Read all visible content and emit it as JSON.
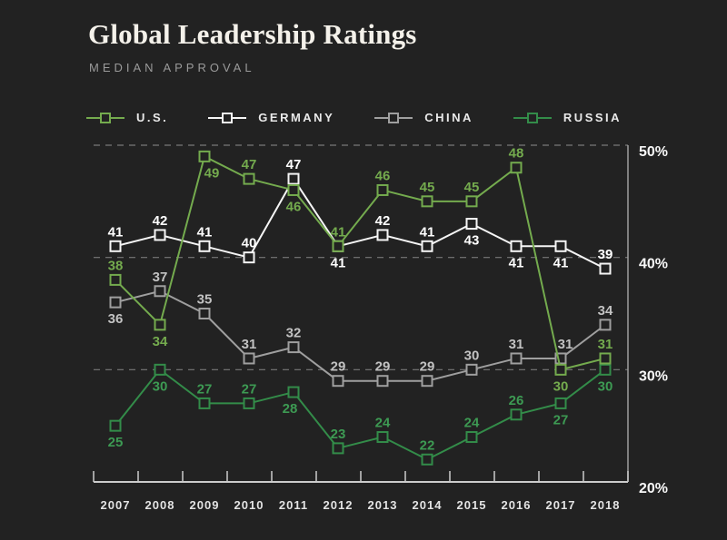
{
  "page": {
    "background": "#222222"
  },
  "header": {
    "title": "Global Leadership Ratings",
    "subtitle": "MEDIAN APPROVAL"
  },
  "legend": [
    {
      "label": "U.S.",
      "color": "#74ab4e"
    },
    {
      "label": "GERMANY",
      "color": "#f5f5f5"
    },
    {
      "label": "CHINA",
      "color": "#9f9f9f"
    },
    {
      "label": "RUSSIA",
      "color": "#338c49"
    }
  ],
  "chart_data": {
    "type": "line",
    "title": "Global Leadership Ratings",
    "subtitle": "MEDIAN APPROVAL",
    "categories": [
      "2007",
      "2008",
      "2009",
      "2010",
      "2011",
      "2012",
      "2013",
      "2014",
      "2015",
      "2016",
      "2017",
      "2018"
    ],
    "series": [
      {
        "name": "U.S.",
        "color": "#74ab4e",
        "label_color": "#74ab4e",
        "values": [
          38,
          34,
          49,
          47,
          46,
          41,
          46,
          45,
          45,
          48,
          30,
          31
        ],
        "label_pos": [
          "a",
          "b",
          "b",
          "a",
          "b",
          "a",
          "a",
          "a",
          "a",
          "a",
          "b",
          "a"
        ],
        "label_dx": [
          0,
          0,
          8,
          0,
          0,
          0,
          0,
          0,
          0,
          0,
          0,
          0
        ]
      },
      {
        "name": "GERMANY",
        "color": "#f5f5f5",
        "label_color": "#ffffff",
        "values": [
          41,
          42,
          41,
          40,
          47,
          41,
          42,
          41,
          43,
          41,
          41,
          39
        ],
        "label_pos": [
          "a",
          "a",
          "a",
          "a",
          "a",
          "b",
          "a",
          "a",
          "b",
          "b",
          "b",
          "a"
        ],
        "label_dx": [
          0,
          0,
          0,
          0,
          0,
          0,
          0,
          0,
          0,
          0,
          0,
          0
        ]
      },
      {
        "name": "CHINA",
        "color": "#9f9f9f",
        "label_color": "#c2c2c2",
        "values": [
          36,
          37,
          35,
          31,
          32,
          29,
          29,
          29,
          30,
          31,
          31,
          34
        ],
        "label_pos": [
          "b",
          "a",
          "a",
          "a",
          "a",
          "a",
          "a",
          "a",
          "a",
          "a",
          "a",
          "a"
        ],
        "label_dx": [
          0,
          0,
          0,
          0,
          0,
          0,
          0,
          0,
          0,
          0,
          5,
          0
        ]
      },
      {
        "name": "RUSSIA",
        "color": "#338c49",
        "label_color": "#3d9a53",
        "values": [
          25,
          30,
          27,
          27,
          28,
          23,
          24,
          22,
          24,
          26,
          27,
          30
        ],
        "label_pos": [
          "b",
          "b",
          "a",
          "a",
          "b",
          "a",
          "a",
          "a",
          "a",
          "a",
          "b",
          "b"
        ],
        "label_dx": [
          0,
          0,
          0,
          0,
          -4,
          0,
          0,
          0,
          0,
          0,
          0,
          0
        ]
      }
    ],
    "draw_order": [
      "CHINA",
      "RUSSIA",
      "GERMANY",
      "U.S."
    ],
    "yticks": [
      {
        "value": 50,
        "label": "50%"
      },
      {
        "value": 40,
        "label": "40%"
      },
      {
        "value": 30,
        "label": "30%"
      },
      {
        "value": 20,
        "label": "20%"
      }
    ],
    "grid_values": [
      50,
      40,
      30
    ],
    "ylim": [
      20,
      50
    ],
    "legend_position": "top",
    "yaxis_side": "right",
    "grid_style": "dashed",
    "colors": {
      "grid": "#787878",
      "axis": "#cccccc",
      "plot_border": "#a0a0a0",
      "year_label": "#e3e3e3",
      "ytick_label": "#f7f7f7",
      "marker_fill": "#222222"
    }
  }
}
